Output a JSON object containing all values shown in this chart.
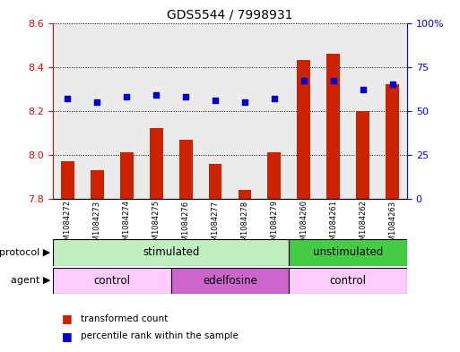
{
  "title": "GDS5544 / 7998931",
  "samples": [
    "GSM1084272",
    "GSM1084273",
    "GSM1084274",
    "GSM1084275",
    "GSM1084276",
    "GSM1084277",
    "GSM1084278",
    "GSM1084279",
    "GSM1084260",
    "GSM1084261",
    "GSM1084262",
    "GSM1084263"
  ],
  "bar_values": [
    7.97,
    7.93,
    8.01,
    8.12,
    8.07,
    7.96,
    7.84,
    8.01,
    8.43,
    8.46,
    8.2,
    8.32
  ],
  "dot_values": [
    57,
    55,
    58,
    59,
    58,
    56,
    55,
    57,
    67,
    67,
    62,
    65
  ],
  "bar_color": "#cc2200",
  "dot_color": "#0000cc",
  "ylim_left": [
    7.8,
    8.6
  ],
  "ylim_right": [
    0,
    100
  ],
  "yticks_left": [
    7.8,
    8.0,
    8.2,
    8.4,
    8.6
  ],
  "yticks_right": [
    0,
    25,
    50,
    75,
    100
  ],
  "ytick_labels_right": [
    "0",
    "25",
    "50",
    "75",
    "100%"
  ],
  "legend_items": [
    {
      "label": "transformed count",
      "color": "#cc2200"
    },
    {
      "label": "percentile rank within the sample",
      "color": "#0000cc"
    }
  ],
  "protocol_row_label": "protocol",
  "agent_row_label": "agent",
  "stimulated_color": "#c0f0c0",
  "unstimulated_color": "#44cc44",
  "control_color": "#ffccff",
  "edelfosine_color": "#cc66cc",
  "background_color": "#ffffff",
  "col_bg_color": "#d8d8d8"
}
